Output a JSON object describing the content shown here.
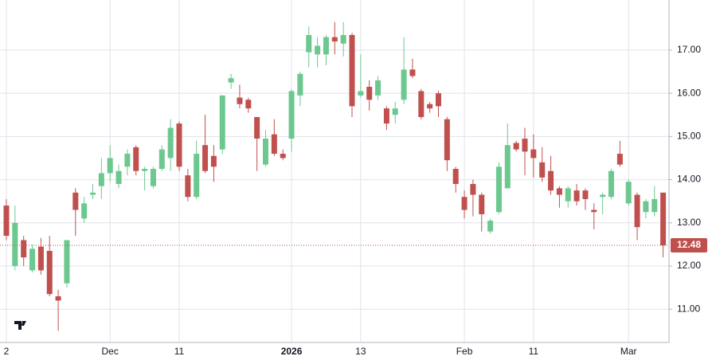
{
  "chart_data": {
    "type": "candlestick",
    "categories": [
      "2",
      null,
      null,
      null,
      null,
      null,
      null,
      null,
      null,
      null,
      null,
      null,
      "Dec",
      null,
      null,
      null,
      null,
      null,
      null,
      null,
      "11",
      null,
      null,
      null,
      null,
      null,
      null,
      null,
      null,
      null,
      null,
      null,
      null,
      "2026",
      null,
      null,
      null,
      null,
      null,
      null,
      null,
      "13",
      null,
      null,
      null,
      null,
      null,
      null,
      null,
      null,
      null,
      null,
      null,
      "Feb",
      null,
      null,
      null,
      null,
      null,
      null,
      null,
      "11",
      null,
      null,
      null,
      null,
      null,
      null,
      null,
      null,
      null,
      null,
      "Mar",
      null,
      null,
      null,
      null
    ],
    "open": [
      13.4,
      12.0,
      12.6,
      11.9,
      12.45,
      12.35,
      11.3,
      11.6,
      13.7,
      13.1,
      13.65,
      13.85,
      14.15,
      13.9,
      14.3,
      14.75,
      14.2,
      13.85,
      14.25,
      14.5,
      15.3,
      14.1,
      13.6,
      14.8,
      14.55,
      14.7,
      16.25,
      15.9,
      15.85,
      15.45,
      14.35,
      15.05,
      14.6,
      14.95,
      15.95,
      16.95,
      16.9,
      16.9,
      17.3,
      17.15,
      17.35,
      15.95,
      16.15,
      15.95,
      15.65,
      15.5,
      15.85,
      16.55,
      16.05,
      15.75,
      16.0,
      15.4,
      14.25,
      13.6,
      13.9,
      13.65,
      12.8,
      13.25,
      13.8,
      14.85,
      14.95,
      14.7,
      14.4,
      14.2,
      13.8,
      13.5,
      13.75,
      13.75,
      13.3,
      13.6,
      13.6,
      14.6,
      13.45,
      13.65,
      13.25,
      13.25,
      13.7
    ],
    "high": [
      13.55,
      13.4,
      12.7,
      12.5,
      12.65,
      12.7,
      11.45,
      12.6,
      13.8,
      13.6,
      13.9,
      14.5,
      14.8,
      14.35,
      14.7,
      14.8,
      14.3,
      14.3,
      14.8,
      15.4,
      15.35,
      14.25,
      14.9,
      15.5,
      14.8,
      15.95,
      16.45,
      16.2,
      15.9,
      15.45,
      15.15,
      15.4,
      14.7,
      16.1,
      16.5,
      17.55,
      17.3,
      17.35,
      17.65,
      17.65,
      17.4,
      16.9,
      16.3,
      16.4,
      15.7,
      15.8,
      17.3,
      16.8,
      16.1,
      15.8,
      16.05,
      15.45,
      14.3,
      13.75,
      14.0,
      13.7,
      13.1,
      14.4,
      15.3,
      14.9,
      15.2,
      15.05,
      14.75,
      14.55,
      13.85,
      13.85,
      13.9,
      13.8,
      13.45,
      13.7,
      14.25,
      14.9,
      14.0,
      13.7,
      13.55,
      13.85,
      13.7
    ],
    "low": [
      12.6,
      11.9,
      12.0,
      11.85,
      11.8,
      11.3,
      10.5,
      11.5,
      12.7,
      13.0,
      13.55,
      13.55,
      13.95,
      13.8,
      14.1,
      14.1,
      13.75,
      13.8,
      14.2,
      14.2,
      14.2,
      13.5,
      13.55,
      14.15,
      13.95,
      14.6,
      16.1,
      15.65,
      15.55,
      14.2,
      14.3,
      14.55,
      14.45,
      14.65,
      15.7,
      16.6,
      16.6,
      16.65,
      16.9,
      16.85,
      15.45,
      15.9,
      15.6,
      15.85,
      15.15,
      15.3,
      15.75,
      16.35,
      15.4,
      15.55,
      15.45,
      14.2,
      13.7,
      13.1,
      13.15,
      12.8,
      12.75,
      13.2,
      13.8,
      14.65,
      14.1,
      14.05,
      13.95,
      13.65,
      13.35,
      13.35,
      13.4,
      13.3,
      12.85,
      13.2,
      13.55,
      14.3,
      13.4,
      12.6,
      13.1,
      13.15,
      12.2
    ],
    "close": [
      12.7,
      13.0,
      12.2,
      12.4,
      11.9,
      11.35,
      11.2,
      12.6,
      13.3,
      13.45,
      13.7,
      14.15,
      14.5,
      14.2,
      14.6,
      14.2,
      14.25,
      14.25,
      14.7,
      15.2,
      14.3,
      13.6,
      14.6,
      14.2,
      14.3,
      15.95,
      16.35,
      15.75,
      15.65,
      14.95,
      14.95,
      14.6,
      14.5,
      16.05,
      16.45,
      17.35,
      17.1,
      17.3,
      17.2,
      17.35,
      15.7,
      16.05,
      15.85,
      16.3,
      15.3,
      15.65,
      16.55,
      16.4,
      15.45,
      15.65,
      15.7,
      14.45,
      13.9,
      13.3,
      13.65,
      13.2,
      13.05,
      14.3,
      14.8,
      14.7,
      14.65,
      14.5,
      14.05,
      13.75,
      13.65,
      13.8,
      13.5,
      13.55,
      13.25,
      13.65,
      14.2,
      14.35,
      13.95,
      12.9,
      13.5,
      13.55,
      12.48
    ],
    "up_color": "#6cc88f",
    "down_color": "#c0504d",
    "ylim": [
      10.23,
      18.16
    ],
    "yticks": [
      {
        "value": 11,
        "label": "11.00"
      },
      {
        "value": 12,
        "label": "12.00"
      },
      {
        "value": 13,
        "label": "13.00"
      },
      {
        "value": 14,
        "label": "14.00"
      },
      {
        "value": 15,
        "label": "15.00"
      },
      {
        "value": 16,
        "label": "16.00"
      },
      {
        "value": 17,
        "label": "17.00"
      }
    ],
    "grid": true,
    "last_price": 12.48
  }
}
